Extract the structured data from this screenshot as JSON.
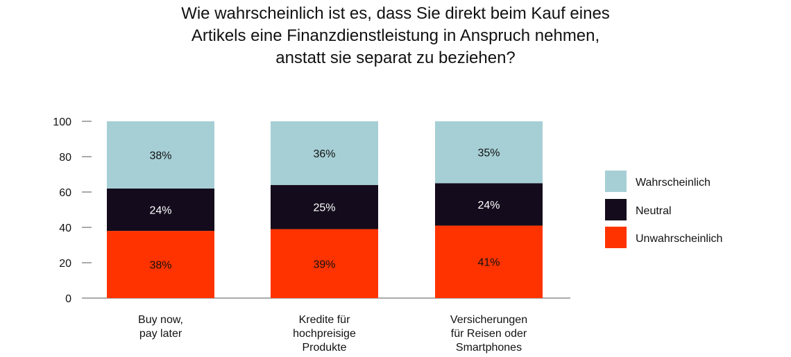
{
  "chart_data": {
    "type": "bar",
    "stacked": true,
    "title_lines": [
      "Wie wahrscheinlich ist es, dass Sie direkt beim Kauf eines",
      "Artikels eine Finanzdienstleistung in Anspruch nehmen,",
      "anstatt sie separat zu beziehen?"
    ],
    "categories": [
      [
        "Buy now,",
        "pay later"
      ],
      [
        "Kredite für",
        "hochpreisige",
        "Produkte"
      ],
      [
        "Versicherungen",
        "für Reisen oder",
        "Smartphones"
      ]
    ],
    "series": [
      {
        "name": "Unwahrscheinlich",
        "color": "#ff3300",
        "values": [
          38,
          39,
          41
        ],
        "labels": [
          "38%",
          "39%",
          "41%"
        ]
      },
      {
        "name": "Neutral",
        "color": "#140c1c",
        "values": [
          24,
          25,
          24
        ],
        "labels": [
          "24%",
          "25%",
          "24%"
        ]
      },
      {
        "name": "Wahrscheinlich",
        "color": "#a6cfd5",
        "values": [
          38,
          36,
          35
        ],
        "labels": [
          "38%",
          "36%",
          "35%"
        ]
      }
    ],
    "legend_order": [
      "Wahrscheinlich",
      "Neutral",
      "Unwahrscheinlich"
    ],
    "legend_position": "right",
    "yticks": [
      0,
      20,
      40,
      60,
      80,
      100
    ],
    "ylim": [
      0,
      100
    ],
    "grid": false
  }
}
